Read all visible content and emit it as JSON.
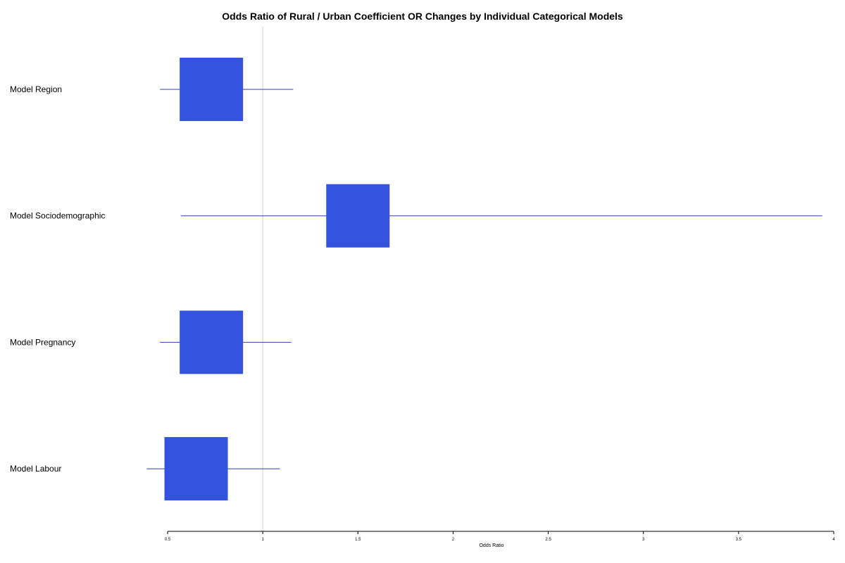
{
  "chart_data": {
    "type": "forest",
    "title": "Odds Ratio of Rural / Urban Coefficient OR Changes by Individual Categorical Models",
    "xlabel": "Odds Ratio",
    "ylabel": "",
    "xlim": [
      0.5,
      4
    ],
    "x_ticks": [
      0.5,
      1,
      1.5,
      2,
      2.5,
      3,
      3.5,
      4
    ],
    "x_tick_labels": [
      "0.5",
      "1",
      "1.5",
      "2",
      "2.5",
      "3",
      "3.5",
      "4"
    ],
    "reference_line": 1,
    "grid": false,
    "rows": [
      {
        "label": "Model Region",
        "estimate": 0.73,
        "ci_low": 0.46,
        "ci_high": 1.16
      },
      {
        "label": "Model Sociodemographic",
        "estimate": 1.5,
        "ci_low": 0.57,
        "ci_high": 3.94
      },
      {
        "label": "Model Pregnancy",
        "estimate": 0.73,
        "ci_low": 0.46,
        "ci_high": 1.15
      },
      {
        "label": "Model Labour",
        "estimate": 0.65,
        "ci_low": 0.39,
        "ci_high": 1.09
      }
    ],
    "colors": {
      "box": "#3352de",
      "whisker": "#3a3ab8",
      "reference": "#d3d3d3",
      "axis": "#000000"
    }
  }
}
